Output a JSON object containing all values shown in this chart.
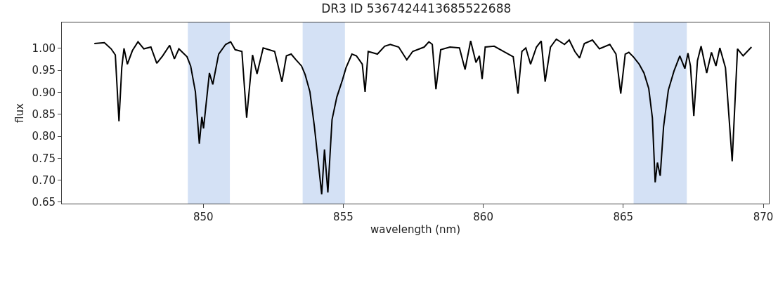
{
  "chart_data": {
    "type": "line",
    "title": "DR3 ID 5367424413685522688",
    "xlabel": "wavelength (nm)",
    "ylabel": "flux",
    "x": [
      846.11,
      846.47,
      846.71,
      846.86,
      846.99,
      847.09,
      847.17,
      847.29,
      847.47,
      847.67,
      847.88,
      848.13,
      848.34,
      848.55,
      848.8,
      848.97,
      849.13,
      849.42,
      849.55,
      849.72,
      849.86,
      849.95,
      850.01,
      850.22,
      850.34,
      850.55,
      850.8,
      850.98,
      851.14,
      851.38,
      851.55,
      851.76,
      851.92,
      852.14,
      852.55,
      852.81,
      852.97,
      853.14,
      853.31,
      853.51,
      853.64,
      853.81,
      853.97,
      854.23,
      854.33,
      854.45,
      854.6,
      854.77,
      854.97,
      855.1,
      855.31,
      855.47,
      855.68,
      855.78,
      855.89,
      856.22,
      856.48,
      856.68,
      856.98,
      857.27,
      857.48,
      857.89,
      858.06,
      858.18,
      858.31,
      858.48,
      858.81,
      859.15,
      859.35,
      859.55,
      859.74,
      859.86,
      859.96,
      860.07,
      860.39,
      860.73,
      861.07,
      861.24,
      861.38,
      861.52,
      861.69,
      861.9,
      862.07,
      862.21,
      862.4,
      862.61,
      862.9,
      863.07,
      863.27,
      863.44,
      863.61,
      863.9,
      864.15,
      864.52,
      864.74,
      864.91,
      865.07,
      865.2,
      865.37,
      865.57,
      865.74,
      865.91,
      866.04,
      866.14,
      866.22,
      866.32,
      866.44,
      866.61,
      866.81,
      867.02,
      867.2,
      867.31,
      867.4,
      867.52,
      867.65,
      867.78,
      867.98,
      868.15,
      868.31,
      868.45,
      868.65,
      868.89,
      869.08,
      869.28,
      869.58
    ],
    "series": [
      {
        "color": "#000000",
        "values": [
          1.011,
          1.013,
          0.999,
          0.985,
          0.834,
          0.956,
          1.0,
          0.964,
          0.995,
          1.015,
          0.999,
          1.003,
          0.966,
          0.983,
          1.007,
          0.976,
          0.999,
          0.981,
          0.96,
          0.901,
          0.783,
          0.844,
          0.818,
          0.944,
          0.918,
          0.987,
          1.009,
          1.015,
          0.997,
          0.993,
          0.842,
          0.985,
          0.942,
          1.001,
          0.993,
          0.924,
          0.983,
          0.987,
          0.974,
          0.96,
          0.94,
          0.901,
          0.822,
          0.668,
          0.77,
          0.672,
          0.838,
          0.889,
          0.928,
          0.956,
          0.987,
          0.983,
          0.964,
          0.901,
          0.993,
          0.987,
          1.005,
          1.009,
          1.003,
          0.974,
          0.993,
          1.003,
          1.015,
          1.009,
          0.907,
          0.997,
          1.003,
          1.001,
          0.952,
          1.017,
          0.968,
          0.983,
          0.93,
          1.003,
          1.005,
          0.993,
          0.981,
          0.897,
          0.993,
          1.001,
          0.964,
          1.003,
          1.017,
          0.924,
          1.003,
          1.021,
          1.009,
          1.019,
          0.993,
          0.978,
          1.011,
          1.019,
          0.999,
          1.009,
          0.987,
          0.897,
          0.987,
          0.991,
          0.98,
          0.964,
          0.944,
          0.909,
          0.842,
          0.695,
          0.74,
          0.71,
          0.822,
          0.905,
          0.948,
          0.983,
          0.954,
          0.989,
          0.96,
          0.846,
          0.972,
          1.005,
          0.944,
          0.991,
          0.96,
          1.001,
          0.956,
          0.743,
          0.999,
          0.983,
          1.003
        ]
      }
    ],
    "xlim": [
      844.95,
      870.2
    ],
    "xticks": [
      850,
      855,
      860,
      865,
      870
    ],
    "ylim": [
      0.6466,
      1.059
    ],
    "yticks": [
      {
        "value": 0.65,
        "label": "0.65"
      },
      {
        "value": 0.7,
        "label": "0.70"
      },
      {
        "value": 0.75,
        "label": "0.75"
      },
      {
        "value": 0.8,
        "label": "0.80"
      },
      {
        "value": 0.85,
        "label": "0.85"
      },
      {
        "value": 0.9,
        "label": "0.90"
      },
      {
        "value": 0.95,
        "label": "0.95"
      },
      {
        "value": 1.0,
        "label": "1.00"
      }
    ],
    "bands": [
      {
        "axis": "x",
        "from": 849.45,
        "to": 850.95,
        "color": "#d4e1f5"
      },
      {
        "axis": "x",
        "from": 853.55,
        "to": 855.06,
        "color": "#d4e1f5"
      },
      {
        "axis": "x",
        "from": 865.37,
        "to": 867.27,
        "color": "#d4e1f5"
      }
    ],
    "line_style": "solid",
    "marker": "none"
  }
}
